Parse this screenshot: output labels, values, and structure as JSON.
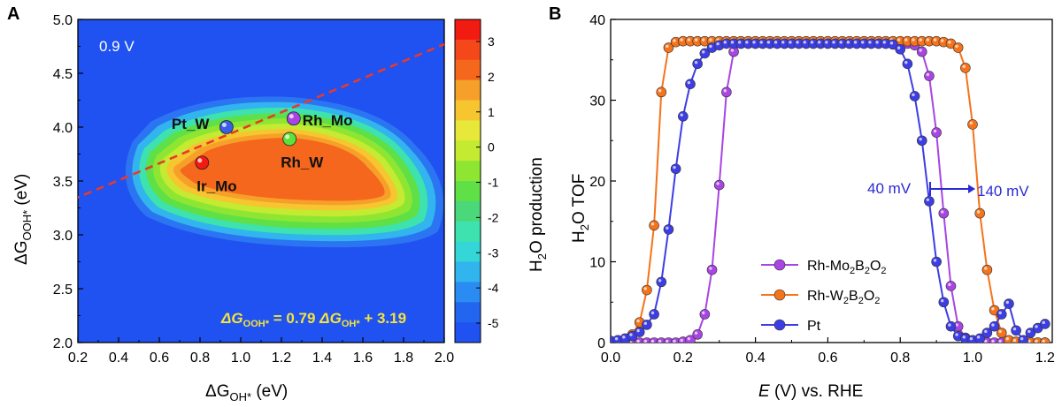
{
  "panel_a": {
    "letter": "A",
    "voltage_label": "0.9 V",
    "xlabel": {
      "base": "ΔG",
      "sub": "OH*",
      "unit": " (eV)"
    },
    "ylabel": {
      "base": "ΔG",
      "sub": "OOH*",
      "unit": " (eV)"
    },
    "equation": {
      "lhs_base": "ΔG",
      "lhs_sub": "OOH*",
      "mid": " = 0.79 ",
      "rhs_base": "ΔG",
      "rhs_sub": "OH*",
      "tail": " + 3.19"
    },
    "colorbar_label": {
      "pre": "H",
      "sub": "2",
      "post": "O production"
    },
    "colorbar_ticks": [
      "3",
      "2",
      "1",
      "0",
      "-1",
      "-2",
      "-3",
      "-4",
      "-5"
    ],
    "colors": {
      "background": "#1f52f0",
      "red": "#f21b12",
      "orange": "#f4671c",
      "dashed": "#e83a2a",
      "eq_text": "#f5e33b"
    },
    "colorbar_colors": [
      "#f21b12",
      "#f4471a",
      "#f4671c",
      "#f6a02a",
      "#f6c530",
      "#e8e83a",
      "#c4ea32",
      "#8ee632",
      "#5ee046",
      "#4ad87a",
      "#3ee2ae",
      "#34d6d8",
      "#32b4ee",
      "#2a8cf2",
      "#2266f0",
      "#1f52f0"
    ]
  },
  "panel_b": {
    "letter": "B",
    "xlabel": {
      "italic": "E",
      "rest": " (V) vs. RHE"
    },
    "ylabel": {
      "pre": "H",
      "sub": "2",
      "post": "O TOF"
    },
    "annotation_40": "40 mV",
    "annotation_140": "140 mV",
    "legend": [
      {
        "pre": "Rh-Mo",
        "s1": "2",
        "mid": "B",
        "s2": "2",
        "mid2": "O",
        "s3": "2",
        "color": "#a845e4"
      },
      {
        "pre": "Rh-W",
        "s1": "2",
        "mid": "B",
        "s2": "2",
        "mid2": "O",
        "s3": "2",
        "color": "#f5731a"
      },
      {
        "pre": "Pt",
        "s1": "",
        "mid": "",
        "s2": "",
        "mid2": "",
        "s3": "",
        "color": "#3d3de6"
      }
    ]
  },
  "chart_data": [
    {
      "type": "heatmap",
      "panel": "A",
      "title": "0.9 V",
      "xlabel": "ΔG_OH* (eV)",
      "ylabel": "ΔG_OOH* (eV)",
      "xlim": [
        0.2,
        2.0
      ],
      "ylim": [
        2.0,
        5.0
      ],
      "xticks": [
        "0.2",
        "0.4",
        "0.6",
        "0.8",
        "1.0",
        "1.2",
        "1.4",
        "1.6",
        "1.8",
        "2.0"
      ],
      "yticks": [
        "2.0",
        "2.5",
        "3.0",
        "3.5",
        "4.0",
        "4.5",
        "5.0"
      ],
      "colorbar": {
        "label": "H2O production",
        "min": -5,
        "max": 3
      },
      "points": [
        {
          "name": "Pt_W",
          "x": 0.93,
          "y": 4.0,
          "color": "#3a5ee8"
        },
        {
          "name": "Rh_Mo",
          "x": 1.26,
          "y": 4.08,
          "color": "#a845e4"
        },
        {
          "name": "Rh_W",
          "x": 1.24,
          "y": 3.89,
          "color": "#5ee23a"
        },
        {
          "name": "Ir_Mo",
          "x": 0.81,
          "y": 3.67,
          "color": "#f21b12"
        }
      ],
      "scaling_line": {
        "slope": 0.79,
        "intercept": 3.19,
        "label": "ΔG_OOH* = 0.79 ΔG_OH* + 3.19"
      }
    },
    {
      "type": "line",
      "panel": "B",
      "xlabel": "E (V) vs. RHE",
      "ylabel": "H2O TOF",
      "xlim": [
        0.0,
        1.22
      ],
      "ylim": [
        0,
        40
      ],
      "xticks": [
        "0.0",
        "0.2",
        "0.4",
        "0.6",
        "0.8",
        "1.0",
        "1.2"
      ],
      "yticks": [
        "0",
        "10",
        "20",
        "30",
        "40"
      ],
      "series": [
        {
          "name": "Rh-Mo2B2O2",
          "color": "#a845e4",
          "x": [
            0.0,
            0.02,
            0.04,
            0.06,
            0.08,
            0.1,
            0.12,
            0.14,
            0.16,
            0.18,
            0.2,
            0.22,
            0.24,
            0.26,
            0.28,
            0.3,
            0.32,
            0.34,
            0.36,
            0.38,
            0.4,
            0.42,
            0.44,
            0.46,
            0.48,
            0.5,
            0.52,
            0.54,
            0.56,
            0.58,
            0.6,
            0.62,
            0.64,
            0.66,
            0.68,
            0.7,
            0.72,
            0.74,
            0.76,
            0.78,
            0.8,
            0.82,
            0.84,
            0.86,
            0.88,
            0.9,
            0.92,
            0.94,
            0.96,
            0.98,
            1.0,
            1.02,
            1.04,
            1.06,
            1.08,
            1.1,
            1.12,
            1.14,
            1.16,
            1.18,
            1.2
          ],
          "y": [
            0,
            0,
            0,
            0,
            0,
            0,
            0,
            0,
            0,
            0,
            0.1,
            0.3,
            1,
            3.5,
            9,
            19.5,
            31,
            36,
            37,
            37,
            37,
            37,
            37,
            37,
            37,
            37,
            37,
            37,
            37,
            37,
            37,
            37,
            37,
            37,
            37,
            37,
            37,
            37,
            37,
            37,
            37,
            37,
            36.8,
            36,
            33,
            26,
            16,
            7,
            2,
            0.6,
            0.2,
            0,
            0,
            0,
            0,
            0,
            0,
            0,
            0,
            0,
            0
          ]
        },
        {
          "name": "Rh-W2B2O2",
          "color": "#f5731a",
          "x": [
            0.0,
            0.02,
            0.04,
            0.06,
            0.08,
            0.1,
            0.12,
            0.14,
            0.16,
            0.18,
            0.2,
            0.22,
            0.24,
            0.26,
            0.28,
            0.3,
            0.32,
            0.34,
            0.36,
            0.38,
            0.4,
            0.42,
            0.44,
            0.46,
            0.48,
            0.5,
            0.52,
            0.54,
            0.56,
            0.58,
            0.6,
            0.62,
            0.64,
            0.66,
            0.68,
            0.7,
            0.72,
            0.74,
            0.76,
            0.78,
            0.8,
            0.82,
            0.84,
            0.86,
            0.88,
            0.9,
            0.92,
            0.94,
            0.96,
            0.98,
            1.0,
            1.02,
            1.04,
            1.06,
            1.08,
            1.1,
            1.12,
            1.14,
            1.16,
            1.18,
            1.2
          ],
          "y": [
            0,
            0,
            0.3,
            1,
            2.5,
            6.5,
            14.5,
            31,
            36.5,
            37.2,
            37.3,
            37.3,
            37.3,
            37.3,
            37.3,
            37.3,
            37.3,
            37.3,
            37.3,
            37.3,
            37.3,
            37.3,
            37.3,
            37.3,
            37.3,
            37.3,
            37.3,
            37.3,
            37.3,
            37.3,
            37.3,
            37.3,
            37.3,
            37.3,
            37.3,
            37.3,
            37.3,
            37.3,
            37.3,
            37.3,
            37.3,
            37.3,
            37.3,
            37.3,
            37.3,
            37.3,
            37.2,
            37,
            36.5,
            34,
            27,
            16,
            9,
            4,
            1.2,
            0.3,
            0.1,
            0,
            0,
            0,
            0
          ]
        },
        {
          "name": "Pt",
          "color": "#3d3de6",
          "x": [
            0.0,
            0.02,
            0.04,
            0.06,
            0.08,
            0.1,
            0.12,
            0.14,
            0.16,
            0.18,
            0.2,
            0.22,
            0.24,
            0.26,
            0.28,
            0.3,
            0.32,
            0.34,
            0.36,
            0.38,
            0.4,
            0.42,
            0.44,
            0.46,
            0.48,
            0.5,
            0.52,
            0.54,
            0.56,
            0.58,
            0.6,
            0.62,
            0.64,
            0.66,
            0.68,
            0.7,
            0.72,
            0.74,
            0.76,
            0.78,
            0.8,
            0.82,
            0.84,
            0.86,
            0.88,
            0.9,
            0.92,
            0.94,
            0.96,
            0.98,
            1.0,
            1.02,
            1.04,
            1.06,
            1.08,
            1.1,
            1.12,
            1.14,
            1.16,
            1.18,
            1.2
          ],
          "y": [
            0.2,
            0.3,
            0.5,
            0.8,
            1.3,
            2.2,
            3.5,
            7.5,
            14,
            21.5,
            28,
            32,
            34.5,
            35.8,
            36.5,
            36.8,
            37,
            37,
            37,
            37,
            37,
            37,
            37,
            37,
            37,
            37,
            37,
            37,
            37,
            37,
            37,
            37,
            37,
            37,
            37,
            37,
            37,
            37,
            37,
            36.9,
            36.3,
            34.5,
            30.5,
            25,
            17.5,
            10,
            5,
            2,
            0.8,
            0.5,
            0.3,
            0.5,
            1.2,
            2,
            3.5,
            4.8,
            1.5,
            0.3,
            1.2,
            1.8,
            2.3
          ]
        }
      ]
    }
  ]
}
